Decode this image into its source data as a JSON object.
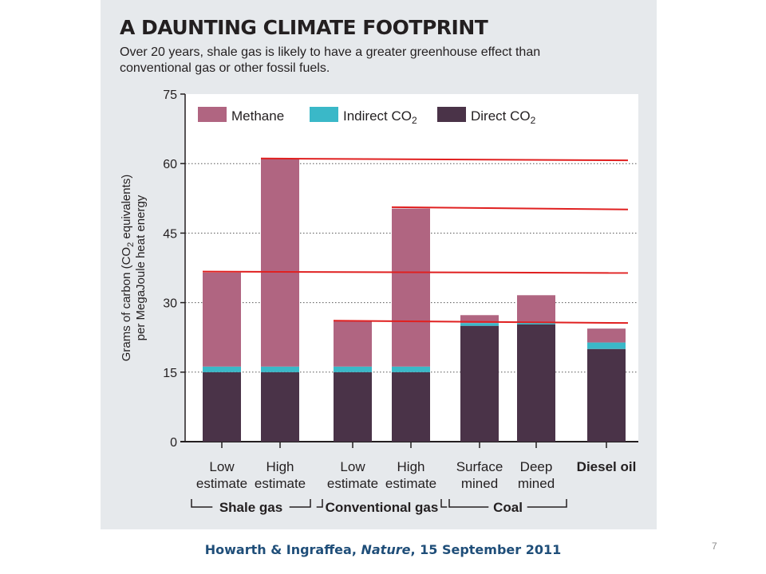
{
  "slide": {
    "caption_authors": "Howarth & Ingraffea, ",
    "caption_journal": "Nature",
    "caption_date": ", 15 September 2011",
    "page_number": "7"
  },
  "colors": {
    "panel_bg": "#e6e9ec",
    "methane": "#b06581",
    "indirect_co2": "#3ab8c8",
    "direct_co2": "#4a3348",
    "overlay_line": "#e02020",
    "axis": "#231f20"
  },
  "chart_data": {
    "type": "bar",
    "stacked": true,
    "title": "A DAUNTING CLIMATE FOOTPRINT",
    "subtitle": "Over 20 years, shale gas is likely to have a greater greenhouse effect than conventional gas or other fossil fuels.",
    "ylabel_line1": "Grams of carbon (CO2 equivalents)",
    "ylabel_line2": "per MegaJoule heat energy",
    "ylim": [
      0,
      75
    ],
    "yticks": [
      0,
      15,
      30,
      45,
      60,
      75
    ],
    "grid": "dotted horizontal",
    "legend_position": "top-left",
    "categories": [
      {
        "label_top": "Low",
        "label_bottom": "estimate"
      },
      {
        "label_top": "High",
        "label_bottom": "estimate"
      },
      {
        "label_top": "Low",
        "label_bottom": "estimate"
      },
      {
        "label_top": "High",
        "label_bottom": "estimate"
      },
      {
        "label_top": "Surface",
        "label_bottom": "mined"
      },
      {
        "label_top": "Deep",
        "label_bottom": "mined"
      },
      {
        "label_top": "Diesel oil",
        "label_bottom": ""
      }
    ],
    "groups": [
      {
        "name": "Shale gas",
        "start": 0,
        "end": 1
      },
      {
        "name": "Conventional gas",
        "start": 2,
        "end": 3
      },
      {
        "name": "Coal",
        "start": 4,
        "end": 5
      }
    ],
    "series": [
      {
        "name": "Direct CO",
        "sub": "2",
        "color_key": "direct_co2",
        "values": [
          15,
          15,
          15,
          15,
          25,
          25.3,
          20
        ]
      },
      {
        "name": "Indirect CO",
        "sub": "2",
        "color_key": "indirect_co2",
        "values": [
          1.2,
          1.2,
          1.2,
          1.2,
          0.6,
          0.4,
          1.4
        ]
      },
      {
        "name": "Methane",
        "sub": "",
        "color_key": "methane",
        "values": [
          20.3,
          44.8,
          9.8,
          34.1,
          1.7,
          5.9,
          3
        ]
      }
    ],
    "legend_order": [
      2,
      1,
      0
    ],
    "overlay_lines": [
      {
        "from_bar": 0,
        "value_start": 36.7,
        "value_end": 36.4
      },
      {
        "from_bar": 1,
        "value_start": 61.1,
        "value_end": 60.7
      },
      {
        "from_bar": 2,
        "value_start": 26.1,
        "value_end": 25.6
      },
      {
        "from_bar": 3,
        "value_start": 50.6,
        "value_end": 50.1
      }
    ]
  }
}
